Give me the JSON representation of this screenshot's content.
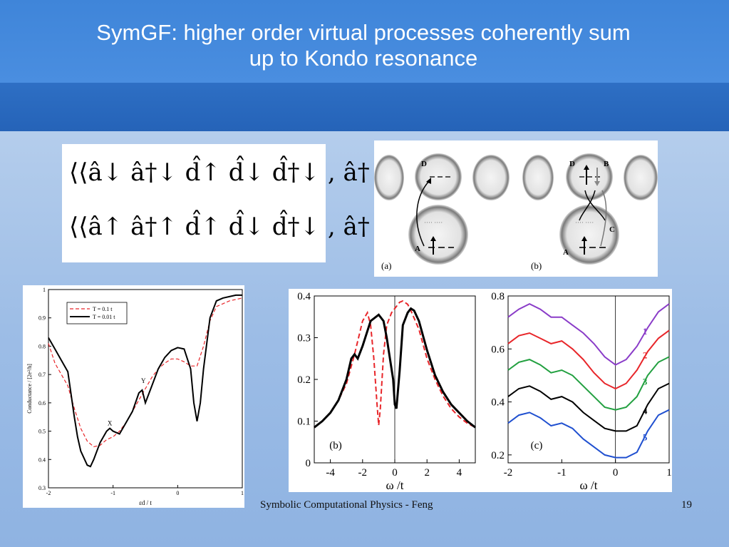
{
  "slide": {
    "title_line1": "SymGF: higher order virtual processes coherently sum",
    "title_line2": "up to Kondo resonance",
    "footer": "Symbolic Computational Physics - Feng",
    "page_number": "19"
  },
  "formulas": {
    "line1": "⟨⟨â↓ â†↓ d̂↑ d̂↓ d̂†↓ , â†↑⟩⟩",
    "line2": "⟨⟨â↑ â†↑ d̂↑ d̂↓ d̂†↓ , â†↑⟩⟩"
  },
  "schematic": {
    "panel_a_label": "(a)",
    "panel_b_label": "(b)",
    "labels_a": [
      "D",
      "A"
    ],
    "labels_b": [
      "D",
      "B",
      "C",
      "A"
    ]
  },
  "chart_data": [
    {
      "type": "line",
      "xlabel": "εd / t",
      "ylabel": "Conductance / [2e²/h]",
      "xlim": [
        -2,
        1
      ],
      "ylim": [
        0.3,
        1.0
      ],
      "xticks": [
        "-2",
        "-1",
        "0",
        "1"
      ],
      "yticks": [
        "0.3",
        "0.4",
        "0.5",
        "0.6",
        "0.7",
        "0.8",
        "0.9",
        "1"
      ],
      "legend_position": "top-left",
      "annotations": [
        {
          "text": "X",
          "x": -1.05,
          "y": 0.51
        },
        {
          "text": "Y",
          "x": -0.53,
          "y": 0.66
        }
      ],
      "series": [
        {
          "name": "T = 0.1 t",
          "style": "dashed",
          "color": "#e8262a",
          "x": [
            -2,
            -1.9,
            -1.8,
            -1.7,
            -1.6,
            -1.5,
            -1.4,
            -1.3,
            -1.2,
            -1.1,
            -1.0,
            -0.9,
            -0.8,
            -0.7,
            -0.6,
            -0.5,
            -0.4,
            -0.3,
            -0.2,
            -0.1,
            0.0,
            0.1,
            0.2,
            0.3,
            0.4,
            0.5,
            0.6,
            0.7,
            0.8,
            0.9,
            1.0
          ],
          "y": [
            0.81,
            0.74,
            0.7,
            0.66,
            0.58,
            0.51,
            0.465,
            0.445,
            0.45,
            0.47,
            0.48,
            0.5,
            0.53,
            0.57,
            0.61,
            0.65,
            0.69,
            0.72,
            0.74,
            0.755,
            0.755,
            0.745,
            0.73,
            0.73,
            0.8,
            0.89,
            0.94,
            0.95,
            0.96,
            0.965,
            0.97
          ]
        },
        {
          "name": "T = 0.01 t",
          "style": "solid",
          "color": "#000000",
          "x": [
            -2,
            -1.9,
            -1.8,
            -1.7,
            -1.6,
            -1.55,
            -1.5,
            -1.4,
            -1.35,
            -1.3,
            -1.2,
            -1.1,
            -1.05,
            -1.0,
            -0.9,
            -0.8,
            -0.7,
            -0.6,
            -0.55,
            -0.5,
            -0.4,
            -0.3,
            -0.2,
            -0.1,
            0.0,
            0.1,
            0.2,
            0.25,
            0.3,
            0.35,
            0.4,
            0.5,
            0.6,
            0.7,
            0.8,
            0.9,
            1.0
          ],
          "y": [
            0.83,
            0.79,
            0.75,
            0.71,
            0.55,
            0.48,
            0.43,
            0.38,
            0.375,
            0.4,
            0.46,
            0.5,
            0.51,
            0.5,
            0.49,
            0.53,
            0.57,
            0.635,
            0.645,
            0.6,
            0.66,
            0.72,
            0.76,
            0.785,
            0.795,
            0.79,
            0.72,
            0.6,
            0.535,
            0.6,
            0.72,
            0.9,
            0.96,
            0.97,
            0.975,
            0.98,
            0.98
          ]
        }
      ]
    },
    {
      "type": "line",
      "panel_label": "(b)",
      "xlabel": "ω /t",
      "xlim": [
        -5,
        5
      ],
      "ylim": [
        0,
        0.4
      ],
      "xticks": [
        "-4",
        "-2",
        "0",
        "2",
        "4"
      ],
      "yticks": [
        "0",
        "0.1",
        "0.2",
        "0.3",
        "0.4"
      ],
      "series": [
        {
          "style": "dashed",
          "color": "#e8262a",
          "x": [
            -5,
            -4.5,
            -4,
            -3.5,
            -3,
            -2.5,
            -2,
            -1.7,
            -1.5,
            -1.3,
            -1.1,
            -1.0,
            -0.9,
            -0.7,
            -0.5,
            -0.2,
            0.0,
            0.3,
            0.5,
            0.8,
            1.0,
            1.5,
            2.0,
            2.5,
            3.0,
            3.5,
            4.0,
            4.5,
            5.0
          ],
          "y": [
            0.085,
            0.1,
            0.12,
            0.15,
            0.19,
            0.26,
            0.34,
            0.36,
            0.33,
            0.25,
            0.14,
            0.09,
            0.13,
            0.26,
            0.33,
            0.36,
            0.37,
            0.385,
            0.388,
            0.38,
            0.365,
            0.32,
            0.25,
            0.2,
            0.16,
            0.13,
            0.11,
            0.095,
            0.085
          ]
        },
        {
          "style": "solid",
          "color": "#000000",
          "x": [
            -5,
            -4.5,
            -4,
            -3.5,
            -3,
            -2.7,
            -2.5,
            -2.3,
            -2,
            -1.5,
            -1.0,
            -0.7,
            -0.5,
            -0.3,
            -0.1,
            0.0,
            0.1,
            0.3,
            0.5,
            0.8,
            1.0,
            1.2,
            1.5,
            2.0,
            2.5,
            3.0,
            3.5,
            4.0,
            4.5,
            5.0
          ],
          "y": [
            0.085,
            0.1,
            0.12,
            0.15,
            0.2,
            0.25,
            0.26,
            0.25,
            0.28,
            0.34,
            0.355,
            0.34,
            0.3,
            0.25,
            0.2,
            0.14,
            0.13,
            0.22,
            0.33,
            0.36,
            0.37,
            0.365,
            0.34,
            0.27,
            0.21,
            0.17,
            0.14,
            0.12,
            0.1,
            0.085
          ]
        }
      ]
    },
    {
      "type": "line",
      "panel_label": "(c)",
      "xlabel": "ω /t",
      "xlim": [
        -2,
        1
      ],
      "ylim": [
        0.17,
        0.8
      ],
      "xticks": [
        "-2",
        "-1",
        "0",
        "1"
      ],
      "yticks": [
        "0.2",
        "0.4",
        "0.6",
        "0.8"
      ],
      "series": [
        {
          "name": "1",
          "color": "#8a3cc8",
          "x": [
            -2,
            -1.8,
            -1.6,
            -1.4,
            -1.2,
            -1.0,
            -0.8,
            -0.6,
            -0.4,
            -0.2,
            0.0,
            0.2,
            0.4,
            0.6,
            0.8,
            1.0
          ],
          "y": [
            0.72,
            0.75,
            0.77,
            0.75,
            0.72,
            0.72,
            0.69,
            0.66,
            0.62,
            0.57,
            0.54,
            0.56,
            0.61,
            0.68,
            0.74,
            0.77
          ]
        },
        {
          "name": "2",
          "color": "#e8262a",
          "x": [
            -2,
            -1.8,
            -1.6,
            -1.4,
            -1.2,
            -1.0,
            -0.8,
            -0.6,
            -0.4,
            -0.2,
            0.0,
            0.2,
            0.4,
            0.6,
            0.8,
            1.0
          ],
          "y": [
            0.62,
            0.65,
            0.66,
            0.64,
            0.62,
            0.63,
            0.6,
            0.56,
            0.51,
            0.47,
            0.45,
            0.47,
            0.52,
            0.59,
            0.64,
            0.67
          ]
        },
        {
          "name": "3",
          "color": "#22a040",
          "x": [
            -2,
            -1.8,
            -1.6,
            -1.4,
            -1.2,
            -1.0,
            -0.8,
            -0.6,
            -0.4,
            -0.2,
            0.0,
            0.2,
            0.4,
            0.6,
            0.8,
            1.0
          ],
          "y": [
            0.52,
            0.55,
            0.56,
            0.54,
            0.51,
            0.52,
            0.5,
            0.46,
            0.42,
            0.38,
            0.37,
            0.38,
            0.42,
            0.5,
            0.55,
            0.57
          ]
        },
        {
          "name": "4",
          "color": "#000000",
          "x": [
            -2,
            -1.8,
            -1.6,
            -1.4,
            -1.2,
            -1.0,
            -0.8,
            -0.6,
            -0.4,
            -0.2,
            0.0,
            0.2,
            0.4,
            0.6,
            0.8,
            1.0
          ],
          "y": [
            0.42,
            0.45,
            0.46,
            0.44,
            0.41,
            0.42,
            0.4,
            0.36,
            0.33,
            0.3,
            0.29,
            0.29,
            0.31,
            0.39,
            0.45,
            0.47
          ]
        },
        {
          "name": "5",
          "color": "#2050d0",
          "x": [
            -2,
            -1.8,
            -1.6,
            -1.4,
            -1.2,
            -1.0,
            -0.8,
            -0.6,
            -0.4,
            -0.2,
            0.0,
            0.2,
            0.4,
            0.6,
            0.8,
            1.0
          ],
          "y": [
            0.32,
            0.35,
            0.36,
            0.34,
            0.31,
            0.32,
            0.3,
            0.26,
            0.23,
            0.2,
            0.19,
            0.19,
            0.21,
            0.29,
            0.35,
            0.37
          ]
        }
      ]
    }
  ]
}
